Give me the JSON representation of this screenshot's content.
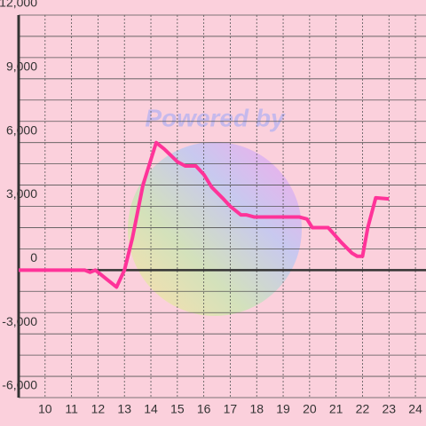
{
  "chart_data": {
    "type": "line",
    "watermark": "Powered by",
    "x": [
      9,
      11.5,
      11.7,
      11.9,
      12.3,
      12.7,
      13.0,
      13.3,
      13.7,
      14.2,
      14.5,
      15.0,
      15.3,
      15.7,
      16.0,
      16.3,
      16.7,
      17.0,
      17.4,
      17.6,
      17.9,
      19.6,
      19.9,
      20.1,
      20.7,
      21.2,
      21.6,
      21.8,
      22.0,
      22.2,
      22.5,
      23.0
    ],
    "series": [
      {
        "color": "#ff3399",
        "values": [
          0,
          0,
          -100,
          0,
          -400,
          -800,
          0,
          1500,
          4000,
          6000,
          5700,
          5100,
          4900,
          4900,
          4500,
          3900,
          3400,
          3000,
          2600,
          2600,
          2500,
          2500,
          2400,
          2000,
          2000,
          1300,
          800,
          650,
          650,
          2000,
          3400,
          3350
        ]
      }
    ],
    "xlim": [
      9,
      24.4
    ],
    "xticks": [
      10,
      11,
      12,
      13,
      14,
      15,
      16,
      17,
      18,
      19,
      20,
      21,
      22,
      23,
      24
    ],
    "ylim": [
      -6000,
      12000
    ],
    "yticks": [
      {
        "value": -6000,
        "label": "-6,000"
      },
      {
        "value": -3000,
        "label": "-3,000"
      },
      0,
      {
        "value": 3000,
        "label": "3,000"
      },
      {
        "value": 6000,
        "label": "6,000"
      },
      {
        "value": 9000,
        "label": "9,000"
      },
      {
        "value": 12000,
        "label": "12,000"
      }
    ],
    "yminor": [
      -5000,
      -4000,
      -2000,
      -1000,
      1000,
      2000,
      4000,
      5000,
      7000,
      8000,
      10000,
      11000
    ],
    "grid": true
  }
}
